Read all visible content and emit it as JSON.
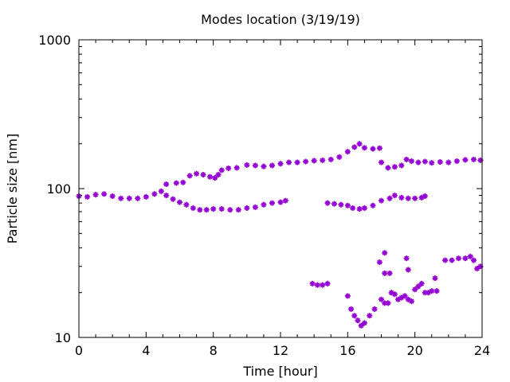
{
  "chart_data": {
    "type": "scatter",
    "title": "Modes location (3/19/19)",
    "xlabel": "Time [hour]",
    "ylabel": "Particle size [nm]",
    "xlim": [
      0,
      24
    ],
    "ylim": [
      10,
      1000
    ],
    "yscale": "log",
    "x_ticks": [
      0,
      4,
      8,
      12,
      16,
      20,
      24
    ],
    "y_ticks": [
      10,
      100,
      1000
    ],
    "grid": false,
    "marker_color": "#9400D3",
    "series": [
      {
        "points": [
          [
            0,
            89
          ],
          [
            0.5,
            88
          ],
          [
            1,
            91
          ],
          [
            1.5,
            92
          ],
          [
            2,
            89
          ],
          [
            2.5,
            86
          ],
          [
            3,
            86
          ],
          [
            3.5,
            86
          ],
          [
            4,
            88
          ],
          [
            4.5,
            92
          ],
          [
            4.9,
            96
          ],
          [
            5.2,
            90
          ],
          [
            5.6,
            85
          ],
          [
            6,
            81
          ],
          [
            6.4,
            78
          ],
          [
            6.8,
            74
          ],
          [
            7.2,
            72
          ],
          [
            7.6,
            72
          ],
          [
            8,
            73
          ],
          [
            8.5,
            73
          ],
          [
            9,
            72
          ],
          [
            9.5,
            72
          ],
          [
            10,
            74
          ],
          [
            10.5,
            75
          ],
          [
            11,
            78
          ],
          [
            11.5,
            80
          ],
          [
            12,
            81
          ],
          [
            12.3,
            83
          ],
          [
            14.8,
            80
          ],
          [
            15.2,
            79
          ],
          [
            15.6,
            78
          ],
          [
            16,
            77
          ],
          [
            16.3,
            74
          ],
          [
            16.7,
            73
          ],
          [
            17,
            74
          ],
          [
            17.5,
            77
          ],
          [
            18,
            83
          ],
          [
            18.5,
            86
          ],
          [
            18.8,
            90
          ],
          [
            19.2,
            87
          ],
          [
            19.6,
            86
          ],
          [
            20,
            86
          ],
          [
            20.4,
            87
          ],
          [
            20.6,
            89
          ]
        ]
      },
      {
        "points": [
          [
            5.2,
            107
          ],
          [
            5.8,
            109
          ],
          [
            6.2,
            110
          ],
          [
            6.6,
            122
          ],
          [
            7,
            126
          ],
          [
            7.4,
            124
          ],
          [
            7.8,
            120
          ],
          [
            8.1,
            118
          ],
          [
            8.3,
            124
          ],
          [
            8.5,
            133
          ],
          [
            8.9,
            137
          ],
          [
            9.4,
            138
          ],
          [
            10,
            144
          ],
          [
            10.5,
            143
          ],
          [
            11,
            141
          ],
          [
            11.5,
            143
          ],
          [
            12,
            147
          ],
          [
            12.5,
            150
          ],
          [
            13,
            150
          ],
          [
            13.5,
            152
          ],
          [
            14,
            154
          ],
          [
            14.5,
            155
          ],
          [
            15,
            157
          ],
          [
            15.5,
            163
          ],
          [
            16,
            177
          ],
          [
            16.4,
            190
          ],
          [
            16.7,
            200
          ],
          [
            17,
            188
          ],
          [
            17.5,
            185
          ],
          [
            17.9,
            187
          ],
          [
            18,
            150
          ],
          [
            18.4,
            138
          ],
          [
            18.8,
            140
          ],
          [
            19.2,
            143
          ],
          [
            19.5,
            157
          ],
          [
            19.8,
            153
          ],
          [
            20.2,
            150
          ],
          [
            20.6,
            152
          ],
          [
            21,
            149
          ],
          [
            21.5,
            151
          ],
          [
            22,
            150
          ],
          [
            22.5,
            153
          ],
          [
            23,
            156
          ],
          [
            23.5,
            157
          ],
          [
            23.9,
            155
          ]
        ]
      },
      {
        "points": [
          [
            13.9,
            23
          ],
          [
            14.2,
            22.5
          ],
          [
            14.5,
            22.5
          ],
          [
            14.8,
            23
          ],
          [
            16,
            19
          ],
          [
            16.2,
            15.5
          ],
          [
            16.4,
            14
          ],
          [
            16.6,
            13
          ],
          [
            16.8,
            12
          ],
          [
            17,
            12.5
          ],
          [
            17.3,
            14
          ],
          [
            17.6,
            15.5
          ],
          [
            18,
            18
          ],
          [
            18.2,
            17
          ],
          [
            18.4,
            17
          ],
          [
            18.6,
            20
          ],
          [
            18.8,
            19.5
          ],
          [
            19,
            18
          ],
          [
            19.2,
            18.5
          ],
          [
            19.4,
            19
          ],
          [
            19.6,
            18
          ],
          [
            19.8,
            17.5
          ],
          [
            20,
            21
          ],
          [
            20.2,
            22
          ],
          [
            20.4,
            23
          ],
          [
            20.6,
            20
          ],
          [
            20.8,
            20
          ],
          [
            21,
            20.5
          ],
          [
            21.3,
            20.5
          ],
          [
            17.9,
            32
          ],
          [
            18.2,
            37
          ],
          [
            18.2,
            27
          ],
          [
            18.5,
            27
          ],
          [
            19.5,
            34
          ],
          [
            19.6,
            28.5
          ],
          [
            21.2,
            25
          ],
          [
            21.8,
            33
          ],
          [
            22.2,
            33
          ],
          [
            22.6,
            34
          ],
          [
            23,
            34
          ],
          [
            23.3,
            35
          ],
          [
            23.5,
            33
          ],
          [
            23.7,
            29
          ],
          [
            23.9,
            30
          ]
        ]
      }
    ]
  }
}
